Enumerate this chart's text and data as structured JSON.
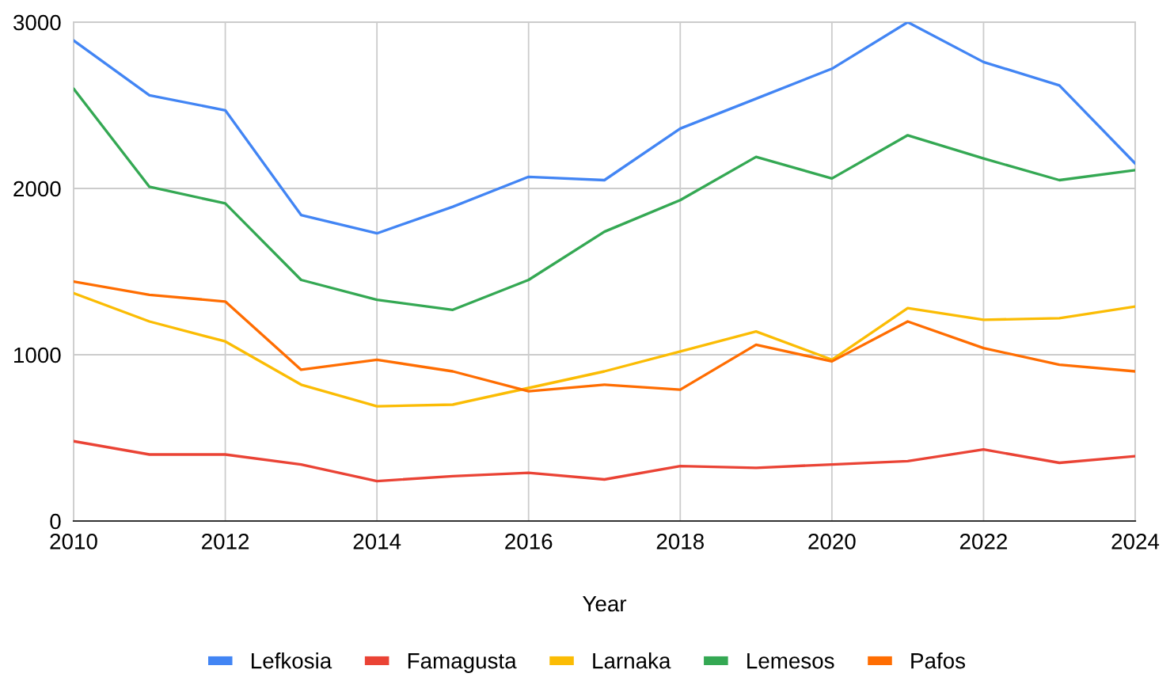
{
  "chart_data": {
    "type": "line",
    "xlabel": "Year",
    "x": [
      2010,
      2011,
      2012,
      2013,
      2014,
      2015,
      2016,
      2017,
      2018,
      2019,
      2020,
      2021,
      2022,
      2023,
      2024
    ],
    "series": [
      {
        "name": "Lefkosia",
        "color": "#4285f4",
        "values": [
          2890,
          2560,
          2470,
          1840,
          1730,
          1890,
          2070,
          2050,
          2360,
          2540,
          2720,
          3000,
          2760,
          2620,
          2150
        ]
      },
      {
        "name": "Famagusta",
        "color": "#ea4335",
        "values": [
          480,
          400,
          400,
          340,
          240,
          270,
          290,
          250,
          330,
          320,
          340,
          360,
          430,
          350,
          390
        ]
      },
      {
        "name": "Larnaka",
        "color": "#fbbc04",
        "values": [
          1370,
          1200,
          1080,
          820,
          690,
          700,
          800,
          900,
          1020,
          1140,
          970,
          1280,
          1210,
          1220,
          1290
        ]
      },
      {
        "name": "Lemesos",
        "color": "#34a853",
        "values": [
          2600,
          2010,
          1910,
          1450,
          1330,
          1270,
          1450,
          1740,
          1930,
          2190,
          2060,
          2320,
          2180,
          2050,
          2110
        ]
      },
      {
        "name": "Pafos",
        "color": "#ff6d01",
        "values": [
          1440,
          1360,
          1320,
          910,
          970,
          900,
          780,
          820,
          790,
          1060,
          960,
          1200,
          1040,
          940,
          900
        ]
      }
    ],
    "xlim": [
      2010,
      2024
    ],
    "xticks": [
      2010,
      2012,
      2014,
      2016,
      2018,
      2020,
      2022,
      2024
    ],
    "ylim": [
      0,
      3000
    ],
    "yticks": [
      0,
      1000,
      2000,
      3000
    ],
    "grid": true,
    "legend": "bottom",
    "line_style": "solid"
  }
}
